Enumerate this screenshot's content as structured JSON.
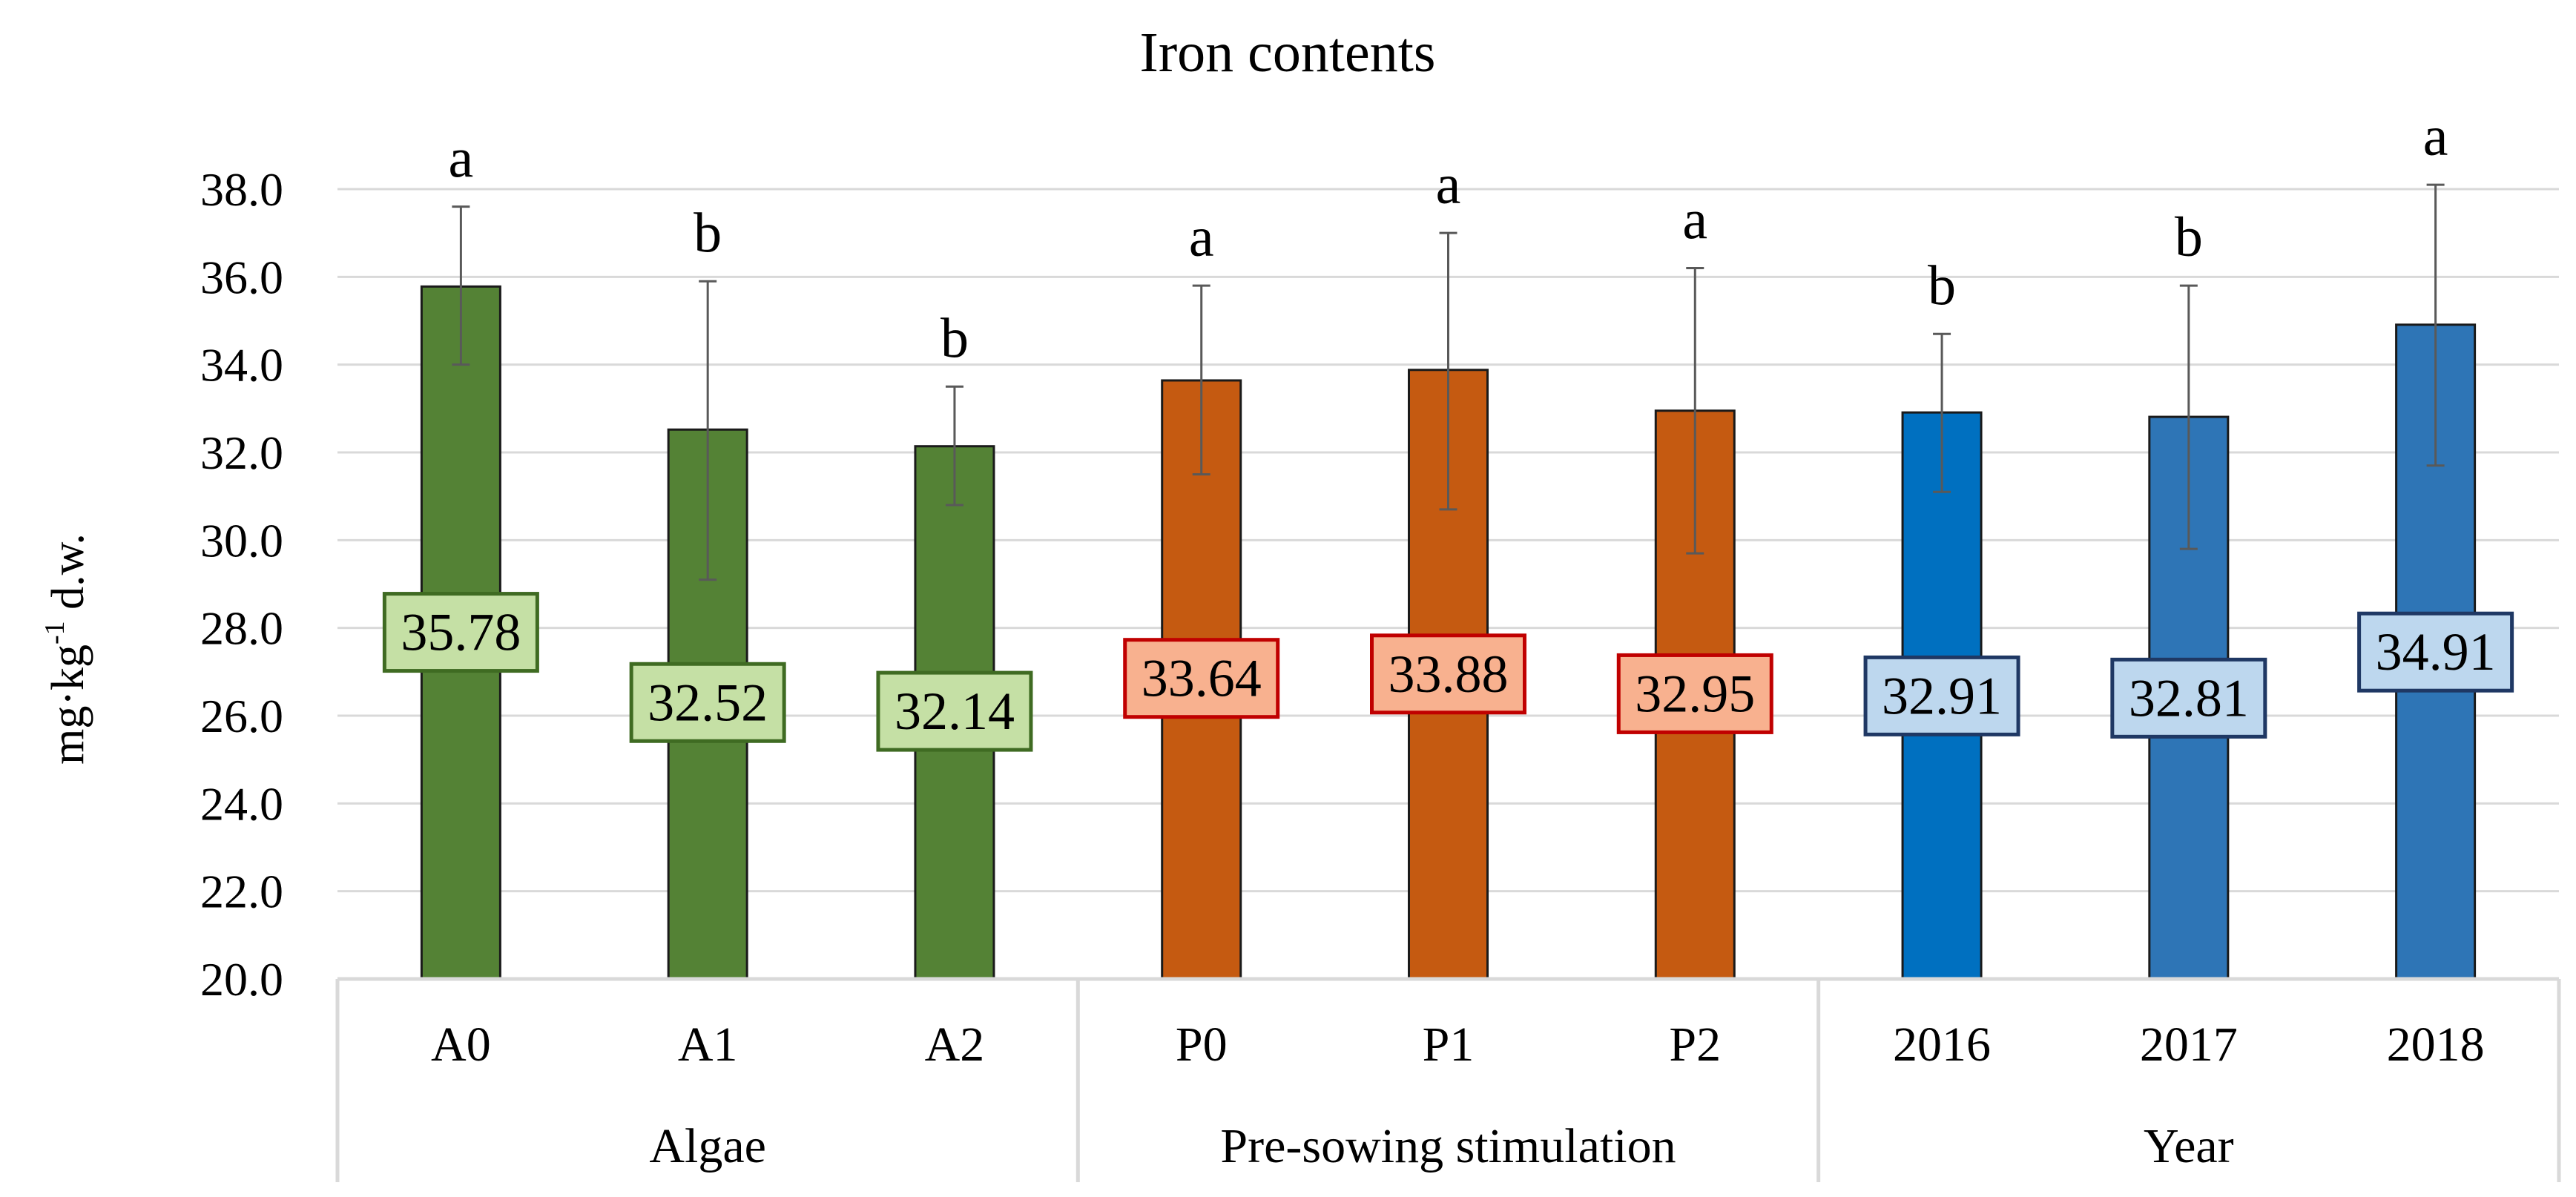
{
  "chart_data": {
    "type": "bar",
    "title": "Iron contents",
    "ylabel_main": "mg·kg",
    "ylabel_sup": "-1",
    "ylabel_rest": " d.w.",
    "ylim": [
      20.0,
      38.0
    ],
    "yticks": [
      "20.0",
      "22.0",
      "24.0",
      "26.0",
      "28.0",
      "30.0",
      "32.0",
      "34.0",
      "36.0",
      "38.0"
    ],
    "grid": true,
    "groups": [
      {
        "name": "Algae",
        "start": 0,
        "end": 3
      },
      {
        "name": "Pre-sowing stimulation",
        "start": 3,
        "end": 6
      },
      {
        "name": "Year",
        "start": 6,
        "end": 9
      }
    ],
    "bars": [
      {
        "category": "A0",
        "value": 35.78,
        "label": "35.78",
        "letter": "a",
        "err_low": 34.0,
        "err_high": 37.6,
        "label_anchor": 27.9,
        "bar_color": "#548235",
        "label_fill": "#c5e0a5",
        "label_border": "#3f6b22"
      },
      {
        "category": "A1",
        "value": 32.52,
        "label": "32.52",
        "letter": "b",
        "err_low": 29.1,
        "err_high": 35.9,
        "label_anchor": 26.3,
        "bar_color": "#548235",
        "label_fill": "#c5e0a5",
        "label_border": "#3f6b22"
      },
      {
        "category": "A2",
        "value": 32.14,
        "label": "32.14",
        "letter": "b",
        "err_low": 30.8,
        "err_high": 33.5,
        "label_anchor": 26.1,
        "bar_color": "#548235",
        "label_fill": "#c5e0a5",
        "label_border": "#3f6b22"
      },
      {
        "category": "P0",
        "value": 33.64,
        "label": "33.64",
        "letter": "a",
        "err_low": 31.5,
        "err_high": 35.8,
        "label_anchor": 26.85,
        "bar_color": "#c55a11",
        "label_fill": "#f8b18f",
        "label_border": "#c00000"
      },
      {
        "category": "P1",
        "value": 33.88,
        "label": "33.88",
        "letter": "a",
        "err_low": 30.7,
        "err_high": 37.0,
        "label_anchor": 26.95,
        "bar_color": "#c55a11",
        "label_fill": "#f8b18f",
        "label_border": "#c00000"
      },
      {
        "category": "P2",
        "value": 32.95,
        "label": "32.95",
        "letter": "a",
        "err_low": 29.7,
        "err_high": 36.2,
        "label_anchor": 26.5,
        "bar_color": "#c55a11",
        "label_fill": "#f8b18f",
        "label_border": "#c00000"
      },
      {
        "category": "2016",
        "value": 32.91,
        "label": "32.91",
        "letter": "b",
        "err_low": 31.1,
        "err_high": 34.7,
        "label_anchor": 26.45,
        "bar_color": "#0070c0",
        "label_fill": "#bdd7ee",
        "label_border": "#1f3864"
      },
      {
        "category": "2017",
        "value": 32.81,
        "label": "32.81",
        "letter": "b",
        "err_low": 29.8,
        "err_high": 35.8,
        "label_anchor": 26.4,
        "bar_color": "#2e75b6",
        "label_fill": "#bdd7ee",
        "label_border": "#1f3864"
      },
      {
        "category": "2018",
        "value": 34.91,
        "label": "34.91",
        "letter": "a",
        "err_low": 31.7,
        "err_high": 38.1,
        "label_anchor": 27.45,
        "bar_color": "#2e75b6",
        "label_fill": "#bdd7ee",
        "label_border": "#1f3864"
      }
    ]
  }
}
